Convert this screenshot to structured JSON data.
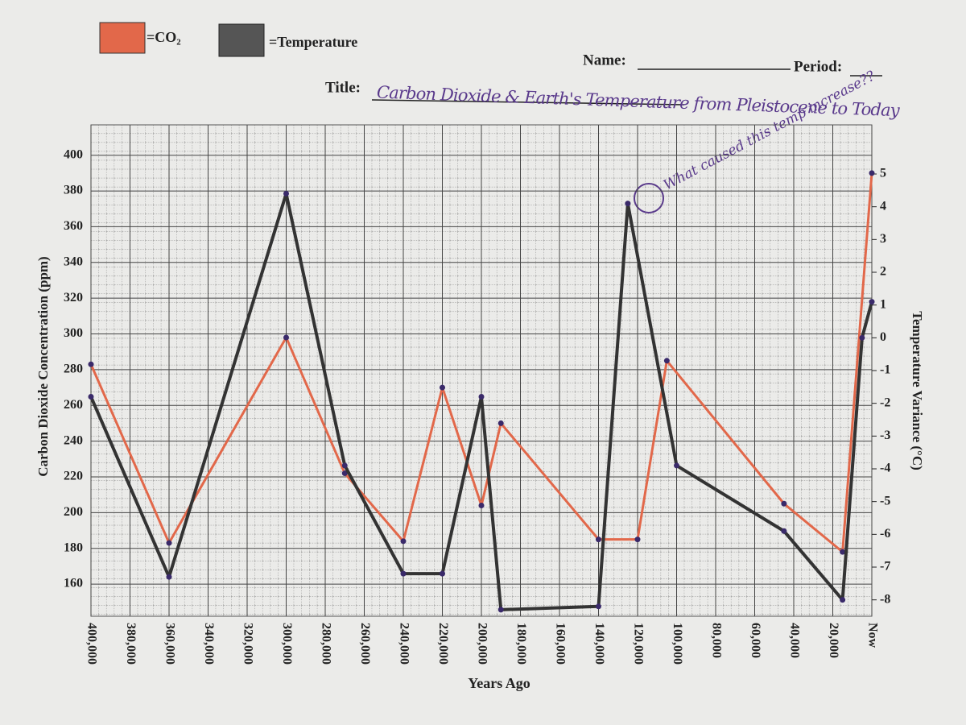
{
  "header": {
    "name_label": "Name:",
    "period_label": "Period:",
    "title_label": "Title:"
  },
  "chart_data": {
    "type": "line",
    "title": "Carbon Dioxide & Earth's Temperature from Pleistocene to Today",
    "annotation": "What caused this temp increase??",
    "x_label": "Years Ago",
    "y_label": "Carbon Dioxide Concentration (ppm)",
    "y2_label": "Temperature Variance (°C)",
    "xlim": [
      400000,
      0
    ],
    "xticks": [
      {
        "value": 400000,
        "label": "400,000"
      },
      {
        "value": 380000,
        "label": "380,000"
      },
      {
        "value": 360000,
        "label": "360,000"
      },
      {
        "value": 340000,
        "label": "340,000"
      },
      {
        "value": 320000,
        "label": "320,000"
      },
      {
        "value": 300000,
        "label": "300,000"
      },
      {
        "value": 280000,
        "label": "280,000"
      },
      {
        "value": 260000,
        "label": "260,000"
      },
      {
        "value": 240000,
        "label": "240,000"
      },
      {
        "value": 220000,
        "label": "220,000"
      },
      {
        "value": 200000,
        "label": "200,000"
      },
      {
        "value": 180000,
        "label": "180,000"
      },
      {
        "value": 160000,
        "label": "160,000"
      },
      {
        "value": 140000,
        "label": "140,000"
      },
      {
        "value": 120000,
        "label": "120,000"
      },
      {
        "value": 100000,
        "label": "100,000"
      },
      {
        "value": 80000,
        "label": "80,000"
      },
      {
        "value": 60000,
        "label": "60,000"
      },
      {
        "value": 40000,
        "label": "40,000"
      },
      {
        "value": 20000,
        "label": "20,000"
      },
      {
        "value": 0,
        "label": "Now"
      }
    ],
    "ylim": [
      142,
      417
    ],
    "yticks": [
      160,
      180,
      200,
      220,
      240,
      260,
      280,
      300,
      320,
      340,
      360,
      380,
      400
    ],
    "y2lim": [
      -8.5,
      6.5
    ],
    "y2ticks": [
      -8,
      -7,
      -6,
      -5,
      -4,
      -3,
      -2,
      -1,
      0,
      1,
      2,
      3,
      4,
      5
    ],
    "grid": true,
    "series": [
      {
        "name": "=CO₂",
        "color": "#e2684a",
        "x": [
          400000,
          360000,
          300000,
          270000,
          240000,
          220000,
          200000,
          190000,
          140000,
          120000,
          105000,
          45000,
          15000,
          0
        ],
        "values": [
          283,
          183,
          298,
          222,
          184,
          270,
          204,
          250,
          185,
          185,
          285,
          205,
          178,
          390
        ]
      },
      {
        "name": "=Temperature",
        "color": "#333333",
        "axis": "y2",
        "x": [
          400000,
          360000,
          300000,
          270000,
          240000,
          220000,
          200000,
          190000,
          140000,
          125000,
          100000,
          45000,
          15000,
          5000,
          0
        ],
        "values": [
          -1.8,
          -7.3,
          4.4,
          -3.9,
          -7.2,
          -7.2,
          -1.8,
          -8.3,
          -8.2,
          4.1,
          -3.9,
          -5.9,
          -8.0,
          0.0,
          1.1
        ]
      }
    ]
  }
}
